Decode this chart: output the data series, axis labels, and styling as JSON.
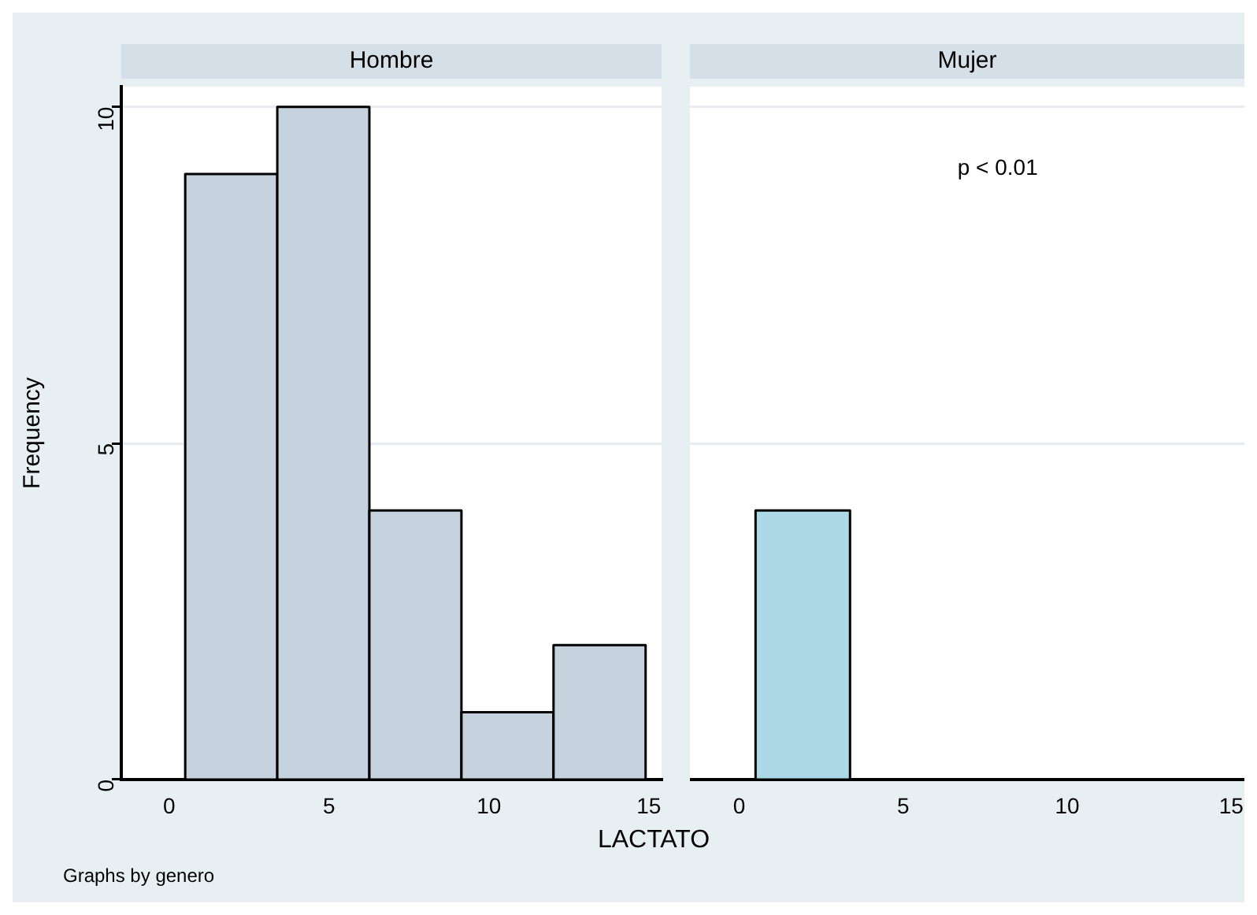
{
  "chart_data": [
    {
      "type": "histogram",
      "title": "Hombre",
      "bins": [
        0.5,
        3.38,
        6.26,
        9.14,
        12.02,
        14.9
      ],
      "values": [
        9,
        10,
        4,
        1,
        2
      ],
      "color": "#c6d2de",
      "xlim": [
        -1.5,
        15.4
      ],
      "xticks": [
        0,
        5,
        10,
        15
      ],
      "ylim": [
        0,
        10.3
      ],
      "yticks": [
        0,
        5,
        10
      ],
      "grid": "y",
      "ylabel": "Frequency",
      "xlabel": "LACTATO",
      "annotations": [
        "Graphs by genero"
      ]
    },
    {
      "type": "histogram",
      "title": "Mujer",
      "bins": [
        0.5,
        3.38
      ],
      "values": [
        4
      ],
      "color": "#add8e6",
      "xlim": [
        -1.5,
        15.4
      ],
      "xticks": [
        0,
        5,
        10,
        15
      ],
      "ylim": [
        0,
        10.3
      ],
      "yticks": [
        0,
        5,
        10
      ],
      "grid": "y",
      "tick_labels": "x",
      "annotations": [
        "p < 0.01"
      ]
    }
  ]
}
